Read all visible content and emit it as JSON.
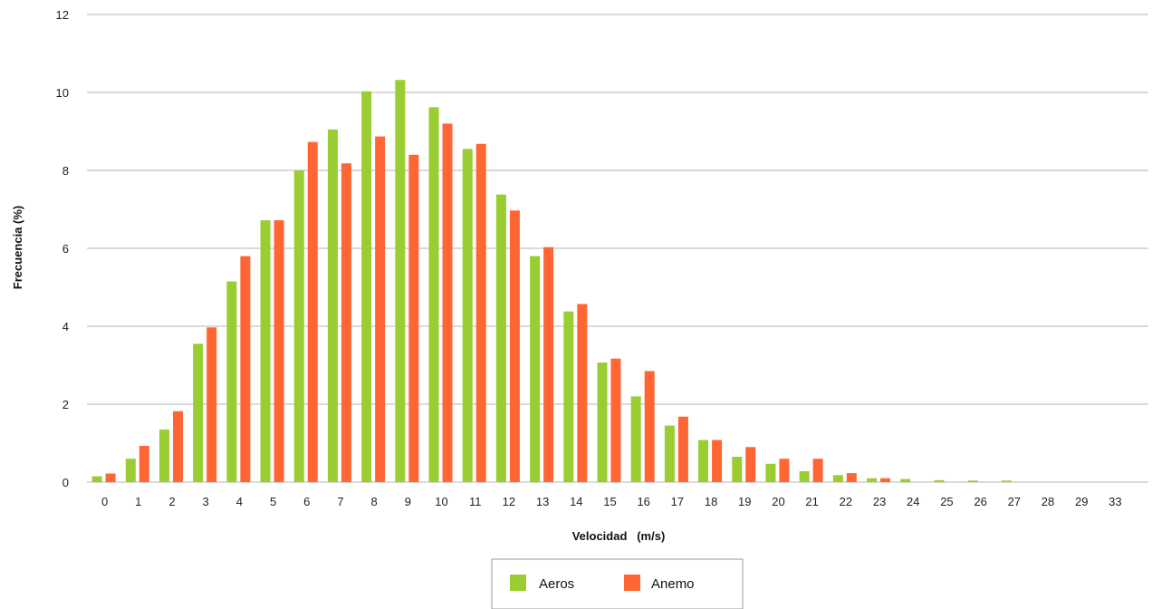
{
  "chart_data": {
    "type": "bar",
    "categories": [
      "0",
      "1",
      "2",
      "3",
      "4",
      "5",
      "6",
      "7",
      "8",
      "9",
      "10",
      "11",
      "12",
      "13",
      "14",
      "15",
      "16",
      "17",
      "18",
      "19",
      "20",
      "21",
      "22",
      "23",
      "24",
      "25",
      "26",
      "27",
      "28",
      "29",
      "33"
    ],
    "series": [
      {
        "name": "Aeros",
        "color": "#9ACD32",
        "values": [
          0.15,
          0.6,
          1.35,
          3.55,
          5.15,
          6.72,
          8.0,
          9.05,
          10.03,
          10.32,
          9.62,
          8.55,
          7.38,
          5.8,
          4.38,
          3.07,
          2.2,
          1.45,
          1.08,
          0.65,
          0.47,
          0.28,
          0.18,
          0.1,
          0.08,
          0.05,
          0.04,
          0.04,
          0,
          0,
          0
        ]
      },
      {
        "name": "Anemo",
        "color": "#FF6633",
        "values": [
          0.22,
          0.93,
          1.82,
          3.97,
          5.8,
          6.72,
          8.73,
          8.18,
          8.87,
          8.4,
          9.2,
          8.68,
          6.97,
          6.03,
          4.57,
          3.17,
          2.85,
          1.68,
          1.08,
          0.9,
          0.6,
          0.6,
          0.23,
          0.1,
          0,
          0,
          0,
          0,
          0,
          0,
          0
        ]
      }
    ],
    "yticks": [
      0,
      2,
      4,
      6,
      8,
      10,
      12
    ],
    "ylim": [
      0,
      12
    ],
    "xlabel": "Velocidad   (m/s)",
    "ylabel": "Frecuencia (%)",
    "grid": true,
    "legend": "bottom-center"
  }
}
